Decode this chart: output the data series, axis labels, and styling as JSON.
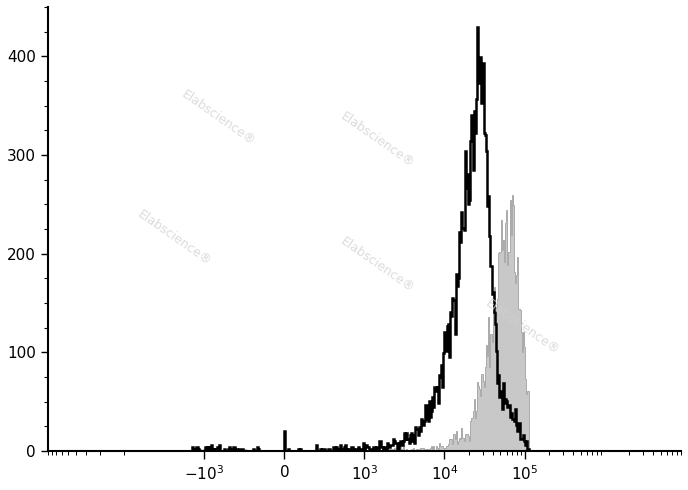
{
  "title": "",
  "xlabel": "",
  "ylabel": "",
  "ylim": [
    0,
    450
  ],
  "yticks": [
    0,
    100,
    200,
    300,
    400
  ],
  "background_color": "#ffffff",
  "watermark_text": "Elabscience®",
  "black_hist_color": "#000000",
  "gray_hist_facecolor": "#c8c8c8",
  "gray_hist_edgecolor": "#aaaaaa",
  "black_hist_linewidth": 1.8,
  "gray_hist_linewidth": 0.7,
  "xlim": [
    -1.15,
    3.05
  ],
  "xtick_positions": [
    -1.0,
    0.0,
    1.0,
    2.0,
    3.0
  ],
  "xtick_labels": [
    "-10$^3$",
    "0",
    "10$^3$",
    "10$^4$",
    "10$^5$"
  ]
}
